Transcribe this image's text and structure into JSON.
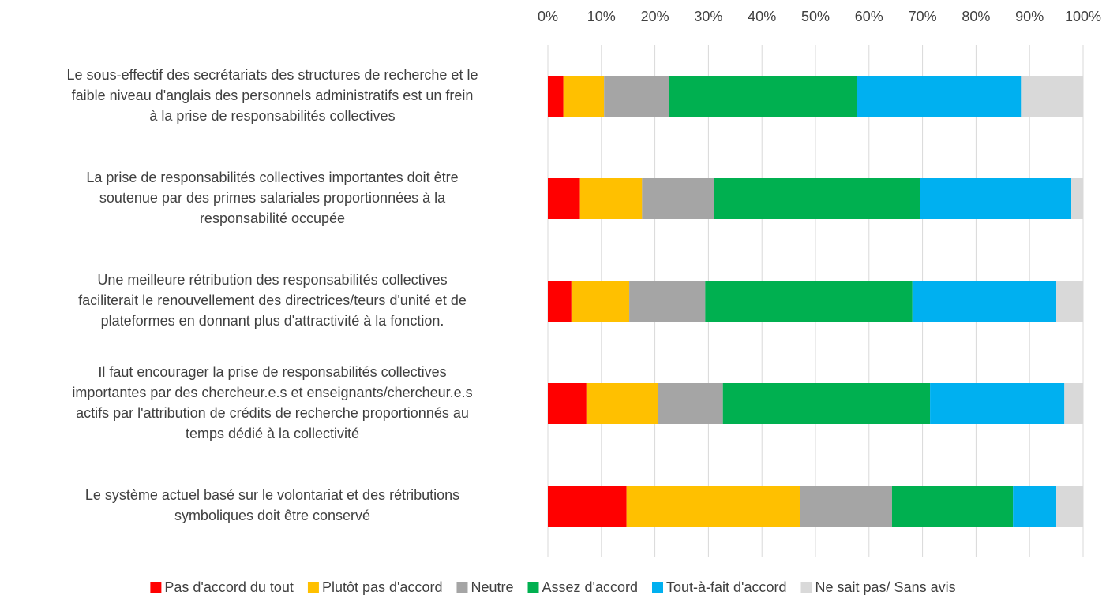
{
  "chart_data": {
    "type": "stacked_bar_horizontal",
    "categories": [
      [
        "Le sous-effectif des secrétariats des structures de recherche et le",
        "faible niveau d'anglais des personnels administratifs est un frein",
        "à la prise de responsabilités collectives"
      ],
      [
        "La prise de responsabilités collectives importantes doit être",
        "soutenue par des primes salariales proportionnées à la",
        "responsabilité occupée"
      ],
      [
        "Une meilleure rétribution des responsabilités collectives",
        "faciliterait le renouvellement des directrices/teurs d'unité et de",
        "plateformes en donnant plus d'attractivité à la fonction."
      ],
      [
        "Il faut encourager la prise de responsabilités collectives",
        "importantes par des chercheur.e.s et enseignants/chercheur.e.s",
        "actifs par l'attribution de crédits de recherche proportionnés au",
        "temps dédié à la collectivité"
      ],
      [
        "Le système actuel basé sur le volontariat et des rétributions",
        "symboliques doit être conservé"
      ]
    ],
    "series": [
      {
        "name": "Pas d'accord du tout",
        "color": "#ff0000",
        "values": [
          2.9,
          6.0,
          4.4,
          7.2,
          14.7
        ]
      },
      {
        "name": "Plutôt pas d'accord",
        "color": "#ffc000",
        "values": [
          7.6,
          11.6,
          10.8,
          13.4,
          32.4
        ]
      },
      {
        "name": "Neutre",
        "color": "#a5a5a5",
        "values": [
          12.1,
          13.4,
          14.2,
          12.1,
          17.2
        ]
      },
      {
        "name": "Assez d'accord",
        "color": "#00b050",
        "values": [
          35.1,
          38.5,
          38.7,
          38.7,
          22.6
        ]
      },
      {
        "name": "Tout-à-fait d'accord",
        "color": "#00b0f0",
        "values": [
          30.7,
          28.3,
          26.9,
          25.1,
          8.1
        ]
      },
      {
        "name": "Ne sait pas/ Sans avis",
        "color": "#d9d9d9",
        "values": [
          11.6,
          2.2,
          5.0,
          3.5,
          5.0
        ]
      }
    ],
    "xlim": [
      0,
      100
    ],
    "xticks": [
      {
        "value": 0,
        "label": "0%"
      },
      {
        "value": 10,
        "label": "10%"
      },
      {
        "value": 20,
        "label": "20%"
      },
      {
        "value": 30,
        "label": "30%"
      },
      {
        "value": 40,
        "label": "40%"
      },
      {
        "value": 50,
        "label": "50%"
      },
      {
        "value": 60,
        "label": "60%"
      },
      {
        "value": 70,
        "label": "70%"
      },
      {
        "value": 80,
        "label": "80%"
      },
      {
        "value": 90,
        "label": "90%"
      },
      {
        "value": 100,
        "label": "100%"
      }
    ],
    "grid": true
  }
}
